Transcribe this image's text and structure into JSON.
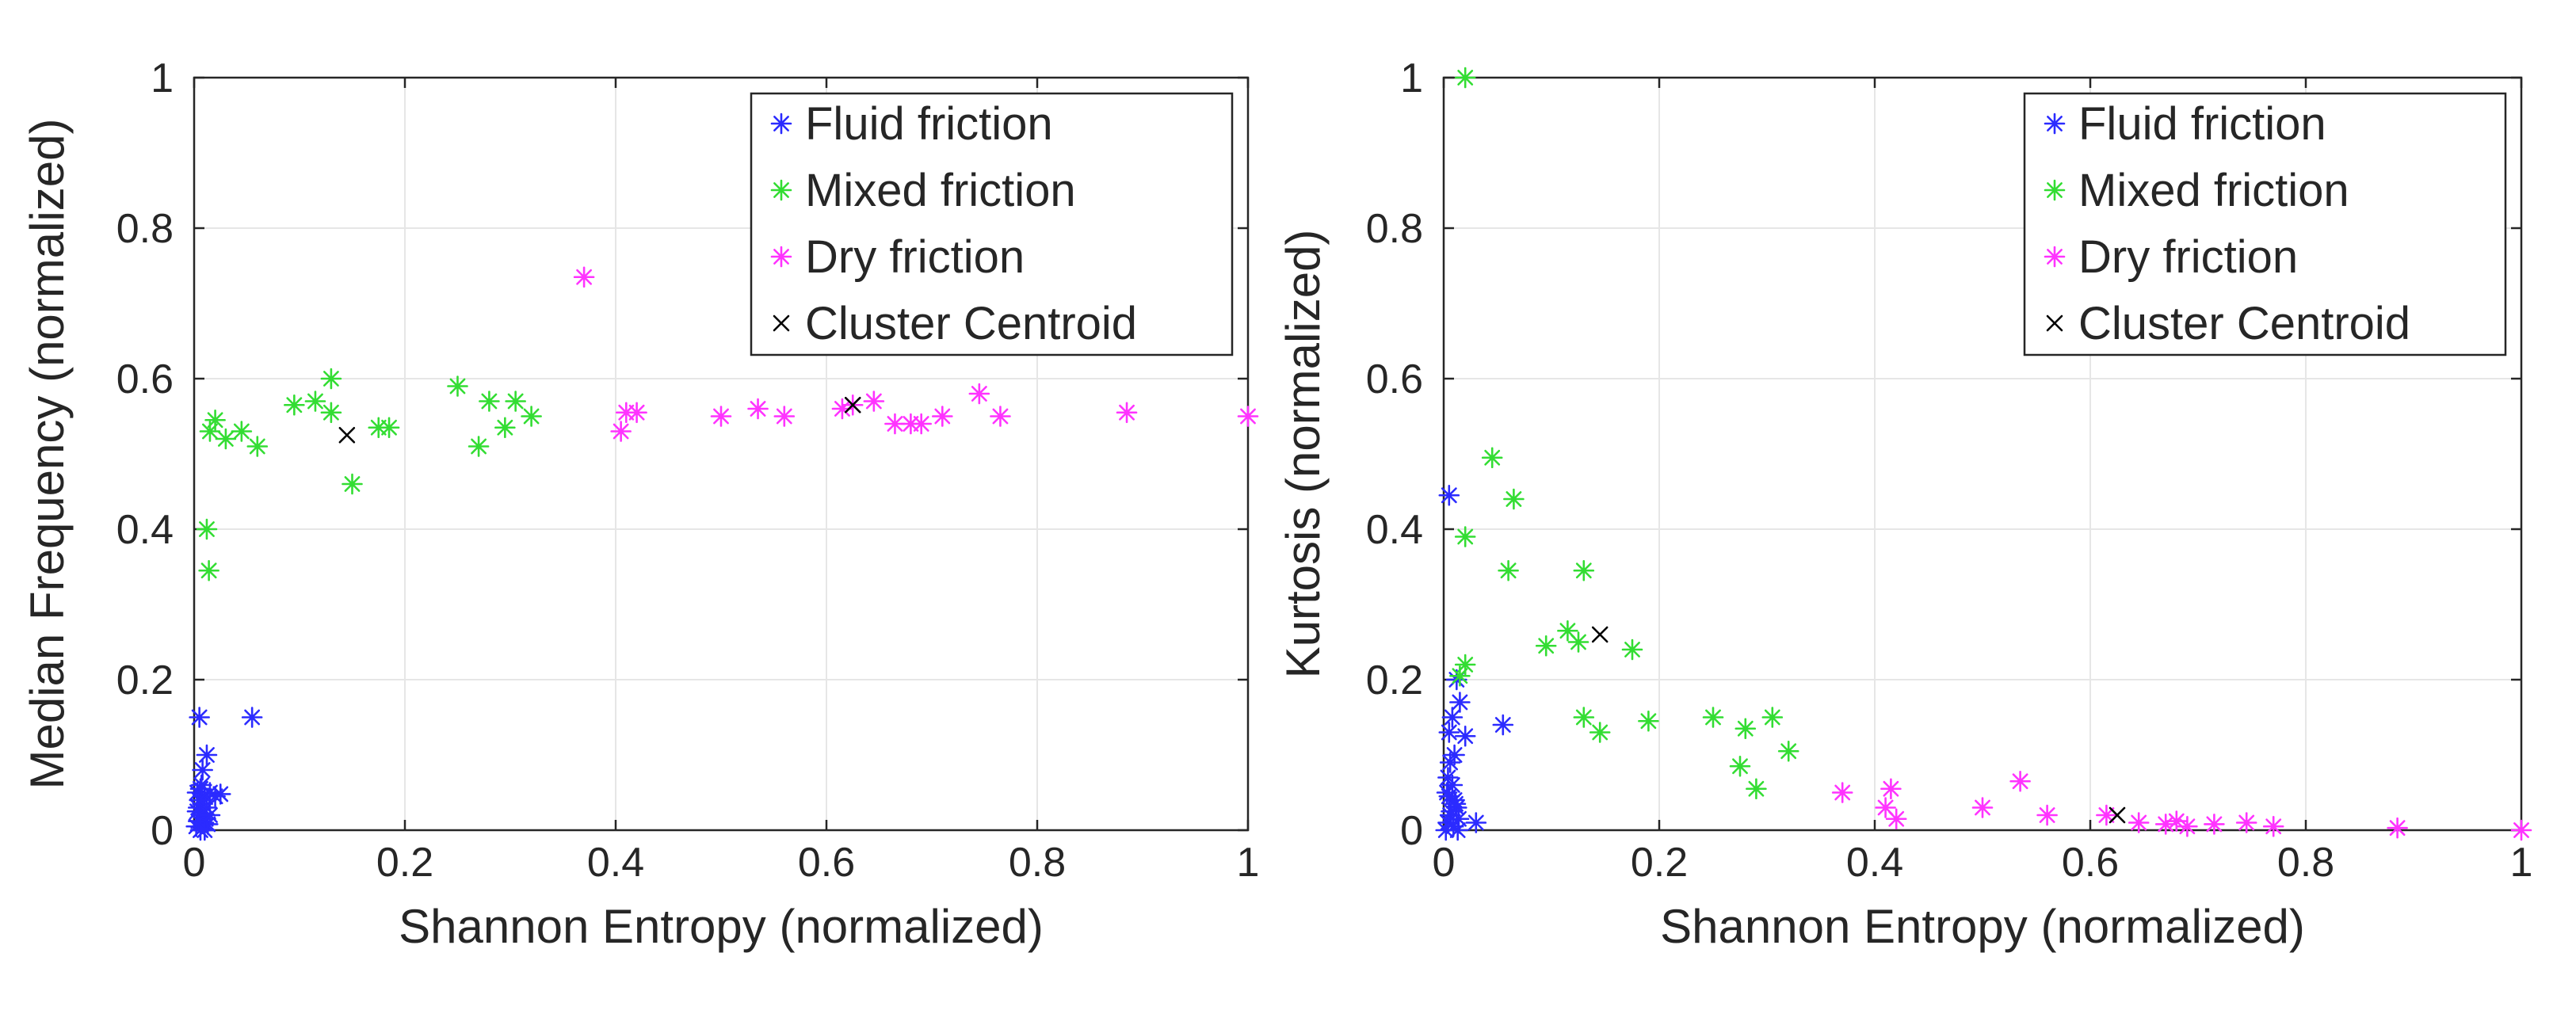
{
  "chart_data": [
    {
      "type": "scatter",
      "xlabel": "Shannon Entropy (normalized)",
      "ylabel": "Median Frequency (normalized)",
      "xlim": [
        0,
        1
      ],
      "ylim": [
        0,
        1
      ],
      "xticks": [
        "0",
        "0.2",
        "0.4",
        "0.6",
        "0.8",
        "1"
      ],
      "yticks": [
        "0",
        "0.2",
        "0.4",
        "0.6",
        "0.8",
        "1"
      ],
      "grid": true,
      "legend_position": "top-right",
      "series": [
        {
          "name": "Fluid friction",
          "marker": "asterisk",
          "color": "#2b2bff",
          "points": [
            [
              0.005,
              0.15
            ],
            [
              0.012,
              0.1
            ],
            [
              0.008,
              0.08
            ],
            [
              0.055,
              0.15
            ],
            [
              0.003,
              0.05
            ],
            [
              0.006,
              0.055
            ],
            [
              0.01,
              0.045
            ],
            [
              0.015,
              0.05
            ],
            [
              0.02,
              0.045
            ],
            [
              0.025,
              0.048
            ],
            [
              0.004,
              0.03
            ],
            [
              0.007,
              0.02
            ],
            [
              0.009,
              0.01
            ],
            [
              0.002,
              0.005
            ],
            [
              0.011,
              0.015
            ],
            [
              0.013,
              0.008
            ],
            [
              0.006,
              0.0
            ],
            [
              0.004,
              0.012
            ],
            [
              0.008,
              0.035
            ],
            [
              0.003,
              0.025
            ],
            [
              0.012,
              0.03
            ],
            [
              0.005,
              0.04
            ],
            [
              0.01,
              0.0
            ],
            [
              0.015,
              0.02
            ],
            [
              0.007,
              0.06
            ]
          ]
        },
        {
          "name": "Mixed friction",
          "marker": "asterisk",
          "color": "#33dd33",
          "points": [
            [
              0.012,
              0.4
            ],
            [
              0.014,
              0.345
            ],
            [
              0.015,
              0.53
            ],
            [
              0.02,
              0.545
            ],
            [
              0.03,
              0.52
            ],
            [
              0.045,
              0.53
            ],
            [
              0.06,
              0.51
            ],
            [
              0.095,
              0.565
            ],
            [
              0.115,
              0.57
            ],
            [
              0.13,
              0.6
            ],
            [
              0.13,
              0.555
            ],
            [
              0.15,
              0.46
            ],
            [
              0.175,
              0.535
            ],
            [
              0.185,
              0.535
            ],
            [
              0.25,
              0.59
            ],
            [
              0.27,
              0.51
            ],
            [
              0.28,
              0.57
            ],
            [
              0.295,
              0.535
            ],
            [
              0.305,
              0.57
            ],
            [
              0.32,
              0.55
            ]
          ]
        },
        {
          "name": "Dry friction",
          "marker": "asterisk",
          "color": "#ff33ff",
          "points": [
            [
              0.37,
              0.735
            ],
            [
              0.405,
              0.53
            ],
            [
              0.41,
              0.555
            ],
            [
              0.42,
              0.555
            ],
            [
              0.5,
              0.55
            ],
            [
              0.535,
              0.56
            ],
            [
              0.56,
              0.55
            ],
            [
              0.615,
              0.56
            ],
            [
              0.625,
              0.565
            ],
            [
              0.645,
              0.57
            ],
            [
              0.665,
              0.54
            ],
            [
              0.68,
              0.54
            ],
            [
              0.69,
              0.54
            ],
            [
              0.71,
              0.55
            ],
            [
              0.745,
              0.58
            ],
            [
              0.765,
              0.55
            ],
            [
              0.885,
              0.555
            ],
            [
              1.0,
              0.55
            ]
          ]
        },
        {
          "name": "Cluster Centroid",
          "marker": "x",
          "color": "#000000",
          "points": [
            [
              0.145,
              0.525
            ],
            [
              0.625,
              0.565
            ]
          ]
        }
      ]
    },
    {
      "type": "scatter",
      "xlabel": "Shannon Entropy (normalized)",
      "ylabel": "Kurtosis (normalized)",
      "xlim": [
        0,
        1
      ],
      "ylim": [
        0,
        1
      ],
      "xticks": [
        "0",
        "0.2",
        "0.4",
        "0.6",
        "0.8",
        "1"
      ],
      "yticks": [
        "0",
        "0.2",
        "0.4",
        "0.6",
        "0.8",
        "1"
      ],
      "grid": true,
      "legend_position": "top-right",
      "series": [
        {
          "name": "Fluid friction",
          "marker": "asterisk",
          "color": "#2b2bff",
          "points": [
            [
              0.005,
              0.445
            ],
            [
              0.012,
              0.2
            ],
            [
              0.015,
              0.17
            ],
            [
              0.008,
              0.15
            ],
            [
              0.02,
              0.125
            ],
            [
              0.055,
              0.14
            ],
            [
              0.005,
              0.13
            ],
            [
              0.01,
              0.1
            ],
            [
              0.006,
              0.09
            ],
            [
              0.004,
              0.07
            ],
            [
              0.008,
              0.06
            ],
            [
              0.003,
              0.05
            ],
            [
              0.01,
              0.04
            ],
            [
              0.012,
              0.03
            ],
            [
              0.006,
              0.02
            ],
            [
              0.004,
              0.01
            ],
            [
              0.009,
              0.005
            ],
            [
              0.014,
              0.015
            ],
            [
              0.03,
              0.01
            ],
            [
              0.002,
              0.0
            ],
            [
              0.007,
              0.025
            ],
            [
              0.011,
              0.035
            ],
            [
              0.005,
              0.045
            ],
            [
              0.013,
              0.0
            ]
          ]
        },
        {
          "name": "Mixed friction",
          "marker": "asterisk",
          "color": "#33dd33",
          "points": [
            [
              0.02,
              1.0
            ],
            [
              0.045,
              0.495
            ],
            [
              0.065,
              0.44
            ],
            [
              0.02,
              0.39
            ],
            [
              0.06,
              0.345
            ],
            [
              0.13,
              0.345
            ],
            [
              0.115,
              0.265
            ],
            [
              0.125,
              0.25
            ],
            [
              0.095,
              0.245
            ],
            [
              0.175,
              0.24
            ],
            [
              0.02,
              0.22
            ],
            [
              0.015,
              0.205
            ],
            [
              0.13,
              0.15
            ],
            [
              0.145,
              0.13
            ],
            [
              0.19,
              0.145
            ],
            [
              0.25,
              0.15
            ],
            [
              0.28,
              0.135
            ],
            [
              0.305,
              0.15
            ],
            [
              0.32,
              0.105
            ],
            [
              0.275,
              0.085
            ],
            [
              0.29,
              0.055
            ]
          ]
        },
        {
          "name": "Dry friction",
          "marker": "asterisk",
          "color": "#ff33ff",
          "points": [
            [
              0.37,
              0.05
            ],
            [
              0.41,
              0.03
            ],
            [
              0.415,
              0.055
            ],
            [
              0.42,
              0.015
            ],
            [
              0.5,
              0.03
            ],
            [
              0.535,
              0.065
            ],
            [
              0.56,
              0.02
            ],
            [
              0.615,
              0.02
            ],
            [
              0.645,
              0.01
            ],
            [
              0.67,
              0.008
            ],
            [
              0.68,
              0.012
            ],
            [
              0.69,
              0.005
            ],
            [
              0.715,
              0.008
            ],
            [
              0.745,
              0.01
            ],
            [
              0.77,
              0.005
            ],
            [
              0.885,
              0.003
            ],
            [
              1.0,
              0.0
            ]
          ]
        },
        {
          "name": "Cluster Centroid",
          "marker": "x",
          "color": "#000000",
          "points": [
            [
              0.145,
              0.26
            ],
            [
              0.625,
              0.02
            ]
          ]
        }
      ]
    }
  ]
}
